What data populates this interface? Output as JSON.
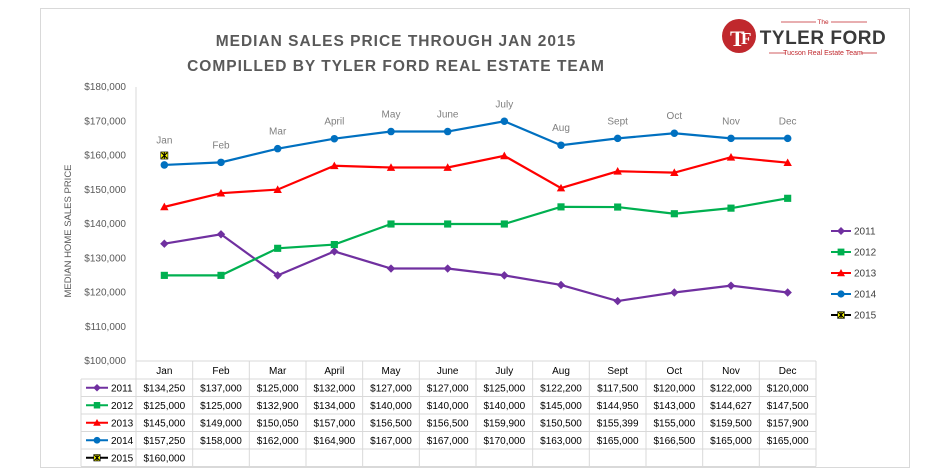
{
  "title_line1": "MEDIAN SALES PRICE THROUGH JAN 2015",
  "title_line2": "COMPILLED BY TYLER FORD REAL ESTATE TEAM",
  "logo": {
    "the": "The",
    "name": "TYLER FORD",
    "tagline": "Tucson Real Estate Team",
    "accent": "#c0282d"
  },
  "chart_data": {
    "type": "line",
    "ylabel": "MEDIAN HOME SALES PRICE",
    "ylim": [
      100000,
      180000
    ],
    "ytick_step": 10000,
    "categories": [
      "Jan",
      "Feb",
      "Mar",
      "April",
      "May",
      "June",
      "July",
      "Aug",
      "Sept",
      "Oct",
      "Nov",
      "Dec"
    ],
    "data_table": true,
    "legend": "right",
    "grid": false,
    "series": [
      {
        "name": "2011",
        "color": "#7030a0",
        "marker": "diamond",
        "values": [
          134250,
          137000,
          125000,
          132000,
          127000,
          127000,
          125000,
          122200,
          117500,
          120000,
          122000,
          120000
        ],
        "labels": [
          "$134,250",
          "$137,000",
          "$125,000",
          "$132,000",
          "$127,000",
          "$127,000",
          "$125,000",
          "$122,200",
          "$117,500",
          "$120,000",
          "$122,000",
          "$120,000"
        ]
      },
      {
        "name": "2012",
        "color": "#00b050",
        "marker": "square",
        "values": [
          125000,
          125000,
          132900,
          134000,
          140000,
          140000,
          140000,
          145000,
          144950,
          143000,
          144627,
          147500
        ],
        "labels": [
          "$125,000",
          "$125,000",
          "$132,900",
          "$134,000",
          "$140,000",
          "$140,000",
          "$140,000",
          "$145,000",
          "$144,950",
          "$143,000",
          "$144,627",
          "$147,500"
        ]
      },
      {
        "name": "2013",
        "color": "#ff0000",
        "marker": "triangle",
        "values": [
          145000,
          149000,
          150050,
          157000,
          156500,
          156500,
          159900,
          150500,
          155399,
          155000,
          159500,
          157900
        ],
        "labels": [
          "$145,000",
          "$149,000",
          "$150,050",
          "$157,000",
          "$156,500",
          "$156,500",
          "$159,900",
          "$150,500",
          "$155,399",
          "$155,000",
          "$159,500",
          "$157,900"
        ]
      },
      {
        "name": "2014",
        "color": "#0070c0",
        "marker": "circle",
        "values": [
          157250,
          158000,
          162000,
          164900,
          167000,
          167000,
          170000,
          163000,
          165000,
          166500,
          165000,
          165000
        ],
        "labels": [
          "$157,250",
          "$158,000",
          "$162,000",
          "$164,900",
          "$167,000",
          "$167,000",
          "$170,000",
          "$163,000",
          "$165,000",
          "$166,500",
          "$165,000",
          "$165,000"
        ]
      },
      {
        "name": "2015",
        "color": "#000000",
        "marker": "star",
        "values": [
          160000,
          null,
          null,
          null,
          null,
          null,
          null,
          null,
          null,
          null,
          null,
          null
        ],
        "labels": [
          "$160,000",
          "",
          "",
          "",
          "",
          "",
          "",
          "",
          "",
          "",
          "",
          ""
        ]
      }
    ],
    "y_tick_labels": [
      "$100,000",
      "$110,000",
      "$120,000",
      "$130,000",
      "$140,000",
      "$150,000",
      "$160,000",
      "$170,000",
      "$180,000"
    ]
  }
}
